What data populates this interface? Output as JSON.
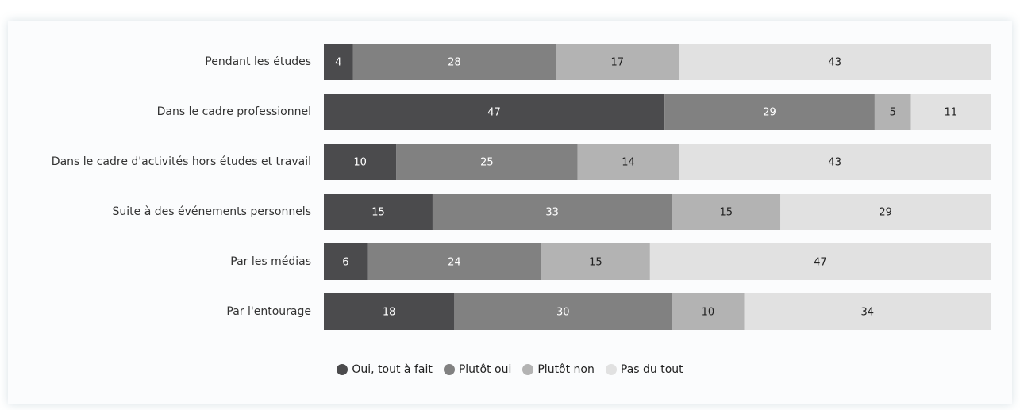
{
  "chart_data": {
    "type": "stacked_bar_horizontal",
    "categories": [
      "Pendant les études",
      "Dans le cadre professionnel",
      "Dans le cadre d'activités hors études et travail",
      "Suite à des événements personnels",
      "Par les médias",
      "Par l'entourage"
    ],
    "series": [
      {
        "name": "Oui, tout à fait",
        "color": "#4b4b4d",
        "values": [
          4,
          47,
          10,
          15,
          6,
          18
        ]
      },
      {
        "name": "Plutôt oui",
        "color": "#818181",
        "values": [
          28,
          29,
          25,
          33,
          24,
          30
        ]
      },
      {
        "name": "Plutôt non",
        "color": "#b3b3b3",
        "values": [
          17,
          5,
          14,
          15,
          15,
          10
        ]
      },
      {
        "name": "Pas du tout",
        "color": "#e1e1e1",
        "values": [
          43,
          11,
          43,
          29,
          47,
          34
        ]
      }
    ],
    "legend": "bottom"
  }
}
